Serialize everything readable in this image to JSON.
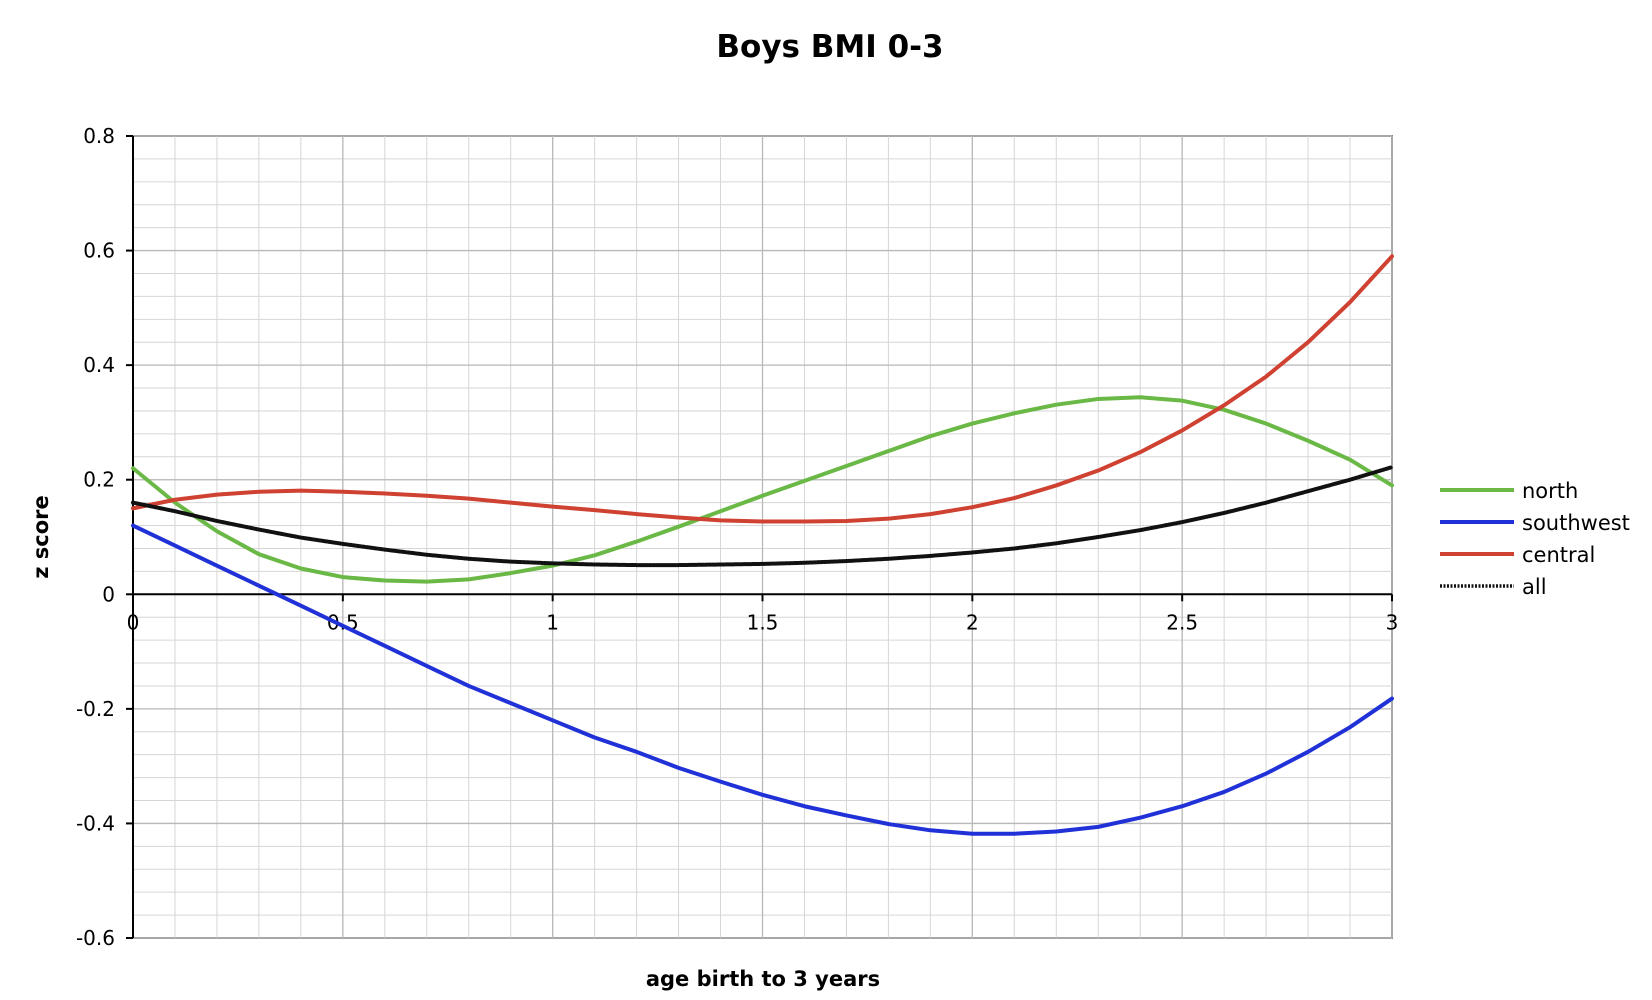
{
  "chart_data": {
    "type": "line",
    "title": "Boys BMI 0-3",
    "xlabel": "age birth to 3 years",
    "ylabel": "z score",
    "xlim": [
      0,
      3
    ],
    "ylim": [
      -0.6,
      0.8
    ],
    "x_ticks": [
      0,
      0.5,
      1,
      1.5,
      2,
      2.5,
      3
    ],
    "x_tick_labels": [
      "0",
      "0.5",
      "1",
      "1.5",
      "2",
      "2.5",
      "3"
    ],
    "y_ticks": [
      -0.6,
      -0.4,
      -0.2,
      0,
      0.2,
      0.4,
      0.6,
      0.8
    ],
    "y_tick_labels": [
      "-0.6",
      "-0.4",
      "-0.2",
      "0",
      "0.2",
      "0.4",
      "0.6",
      "0.8"
    ],
    "grid": true,
    "legend_position": "right",
    "x": [
      0,
      0.1,
      0.2,
      0.3,
      0.4,
      0.5,
      0.6,
      0.7,
      0.8,
      0.9,
      1.0,
      1.1,
      1.2,
      1.3,
      1.4,
      1.5,
      1.6,
      1.7,
      1.8,
      1.9,
      2.0,
      2.1,
      2.2,
      2.3,
      2.4,
      2.5,
      2.6,
      2.7,
      2.8,
      2.9,
      3.0
    ],
    "series": [
      {
        "name": "north",
        "color": "#6ab845",
        "values": [
          0.22,
          0.16,
          0.11,
          0.07,
          0.045,
          0.03,
          0.024,
          0.022,
          0.026,
          0.037,
          0.05,
          0.068,
          0.092,
          0.118,
          0.145,
          0.172,
          0.198,
          0.224,
          0.25,
          0.276,
          0.298,
          0.316,
          0.331,
          0.341,
          0.344,
          0.338,
          0.322,
          0.298,
          0.268,
          0.235,
          0.19
        ]
      },
      {
        "name": "southwest",
        "color": "#2131d8",
        "values": [
          0.12,
          0.085,
          0.05,
          0.015,
          -0.02,
          -0.055,
          -0.09,
          -0.125,
          -0.16,
          -0.19,
          -0.22,
          -0.25,
          -0.275,
          -0.303,
          -0.327,
          -0.35,
          -0.37,
          -0.386,
          -0.401,
          -0.412,
          -0.418,
          -0.418,
          -0.414,
          -0.406,
          -0.39,
          -0.37,
          -0.345,
          -0.313,
          -0.275,
          -0.232,
          -0.182
        ]
      },
      {
        "name": "central",
        "color": "#cf4131",
        "values": [
          0.15,
          0.165,
          0.174,
          0.179,
          0.181,
          0.179,
          0.176,
          0.172,
          0.167,
          0.16,
          0.153,
          0.147,
          0.14,
          0.134,
          0.129,
          0.127,
          0.127,
          0.128,
          0.132,
          0.14,
          0.152,
          0.168,
          0.19,
          0.216,
          0.248,
          0.286,
          0.33,
          0.38,
          0.44,
          0.51,
          0.59
        ]
      },
      {
        "name": "all",
        "color": "#111111",
        "values": [
          0.16,
          0.145,
          0.128,
          0.113,
          0.099,
          0.088,
          0.078,
          0.069,
          0.062,
          0.057,
          0.054,
          0.052,
          0.051,
          0.051,
          0.052,
          0.053,
          0.055,
          0.058,
          0.062,
          0.067,
          0.073,
          0.08,
          0.089,
          0.1,
          0.112,
          0.126,
          0.142,
          0.16,
          0.18,
          0.2,
          0.222
        ]
      }
    ]
  }
}
